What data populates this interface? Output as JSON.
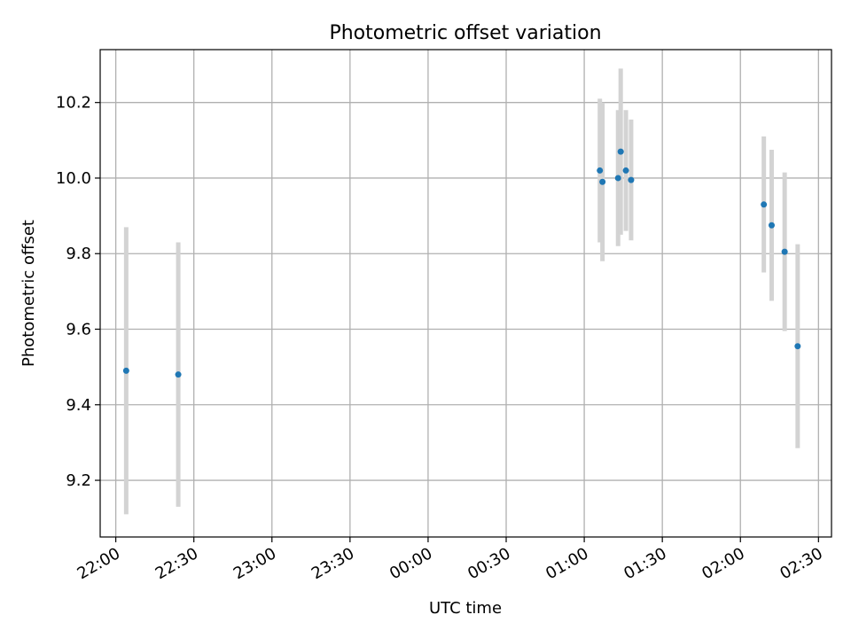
{
  "chart_data": {
    "type": "scatter",
    "title": "Photometric offset variation",
    "xlabel": "UTC time",
    "ylabel": "Photometric offset",
    "x_axis_type": "time",
    "x_range": [
      "21:54",
      "02:35"
    ],
    "ylim": [
      9.05,
      10.34
    ],
    "x_ticks": [
      "22:00",
      "22:30",
      "23:00",
      "23:30",
      "00:00",
      "00:30",
      "01:00",
      "01:30",
      "02:00",
      "02:30"
    ],
    "y_ticks": [
      "9.2",
      "9.4",
      "9.6",
      "9.8",
      "10.0",
      "10.2"
    ],
    "grid": true,
    "colors": {
      "point": "#1f77b4",
      "errorbar": "#d3d3d3",
      "grid": "#b0b0b0"
    },
    "points": [
      {
        "x": "22:04",
        "y": 9.49,
        "err": 0.38
      },
      {
        "x": "22:24",
        "y": 9.48,
        "err": 0.35
      },
      {
        "x": "01:06",
        "y": 10.02,
        "err": 0.19
      },
      {
        "x": "01:07",
        "y": 9.99,
        "err": 0.21
      },
      {
        "x": "01:13",
        "y": 10.0,
        "err": 0.18
      },
      {
        "x": "01:14",
        "y": 10.07,
        "err": 0.22
      },
      {
        "x": "01:16",
        "y": 10.02,
        "err": 0.16
      },
      {
        "x": "01:18",
        "y": 9.995,
        "err": 0.16
      },
      {
        "x": "02:09",
        "y": 9.93,
        "err": 0.18
      },
      {
        "x": "02:12",
        "y": 9.875,
        "err": 0.2
      },
      {
        "x": "02:17",
        "y": 9.805,
        "err": 0.21
      },
      {
        "x": "02:22",
        "y": 9.555,
        "err": 0.27
      }
    ]
  }
}
